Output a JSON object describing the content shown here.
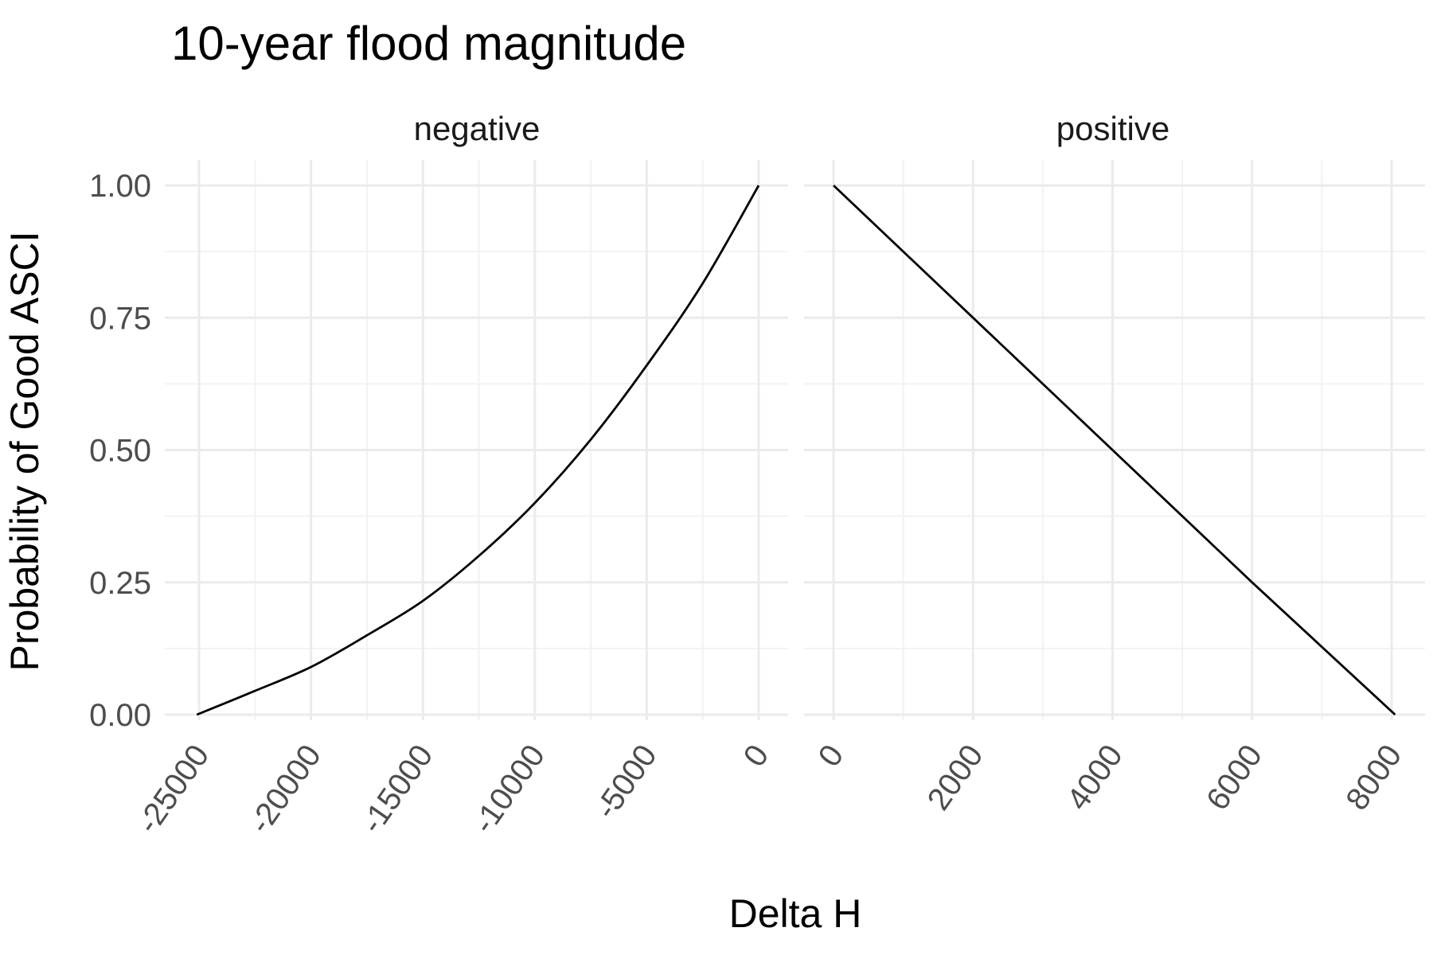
{
  "chart_data": {
    "type": "line",
    "title": "10-year flood magnitude",
    "xlabel": "Delta H",
    "ylabel": "Probability of Good ASCI",
    "grid": true,
    "legend": "none",
    "ylim": [
      0,
      1
    ],
    "y_ticks": [
      "0.00",
      "0.25",
      "0.50",
      "0.75",
      "1.00"
    ],
    "y_tick_values": [
      0,
      0.25,
      0.5,
      0.75,
      1
    ],
    "panels": [
      {
        "label": "negative",
        "xlim": [
          -26200,
          1200
        ],
        "x_ticks": [
          "-25000",
          "-20000",
          "-15000",
          "-10000",
          "-5000",
          "0"
        ],
        "x_tick_values": [
          -25000,
          -20000,
          -15000,
          -10000,
          -5000,
          0
        ],
        "series": [
          {
            "color": "#000000",
            "x": [
              -25100,
              -22500,
              -20000,
              -17500,
              -15000,
              -12500,
              -10000,
              -7500,
              -5000,
              -2500,
              0
            ],
            "y": [
              0.0,
              0.045,
              0.09,
              0.15,
              0.215,
              0.3,
              0.4,
              0.52,
              0.66,
              0.815,
              1.0
            ]
          }
        ]
      },
      {
        "label": "positive",
        "xlim": [
          -400,
          8400
        ],
        "x_ticks": [
          "0",
          "2000",
          "4000",
          "6000",
          "8000"
        ],
        "x_tick_values": [
          0,
          2000,
          4000,
          6000,
          8000
        ],
        "series": [
          {
            "color": "#000000",
            "x": [
              0,
              2000,
              4000,
              6000,
              8050
            ],
            "y": [
              1.0,
              0.75,
              0.5,
              0.25,
              0.0
            ]
          }
        ]
      }
    ]
  }
}
